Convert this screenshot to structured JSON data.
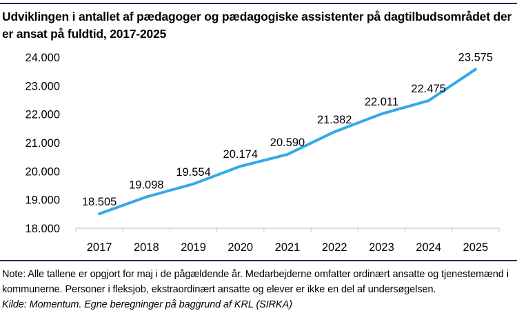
{
  "chart_data": {
    "type": "line",
    "title": "Udviklingen i antallet af pædagoger og pædagogiske assistenter på dagtilbudsområdet der er ansat på fuldtid, 2017-2025",
    "categories": [
      "2017",
      "2018",
      "2019",
      "2020",
      "2021",
      "2022",
      "2023",
      "2024",
      "2025"
    ],
    "values": [
      18505,
      19098,
      19554,
      20174,
      20590,
      21382,
      22011,
      22475,
      23575
    ],
    "data_labels": [
      "18.505",
      "19.098",
      "19.554",
      "20.174",
      "20.590",
      "21.382",
      "22.011",
      "22.475",
      "23.575"
    ],
    "ylim": [
      18000,
      24000
    ],
    "yticks": [
      18000,
      19000,
      20000,
      21000,
      22000,
      23000,
      24000
    ],
    "ytick_labels": [
      "18.000",
      "19.000",
      "20.000",
      "21.000",
      "22.000",
      "23.000",
      "24.000"
    ],
    "xlabel": "",
    "ylabel": "",
    "grid": false,
    "legend": "none",
    "line_color": "#35a9e8",
    "rule_color": "#1f2a5c"
  },
  "note": "Note: Alle tallene er opgjort for maj i de pågældende år. Medarbejderne omfatter ordinært ansatte og tjenestemænd i kommunerne. Personer i fleksjob, ekstraordinært ansatte og elever er ikke en del af undersøgelsen.",
  "source": "Kilde: Momentum. Egne beregninger på baggrund af KRL (SIRKA)"
}
